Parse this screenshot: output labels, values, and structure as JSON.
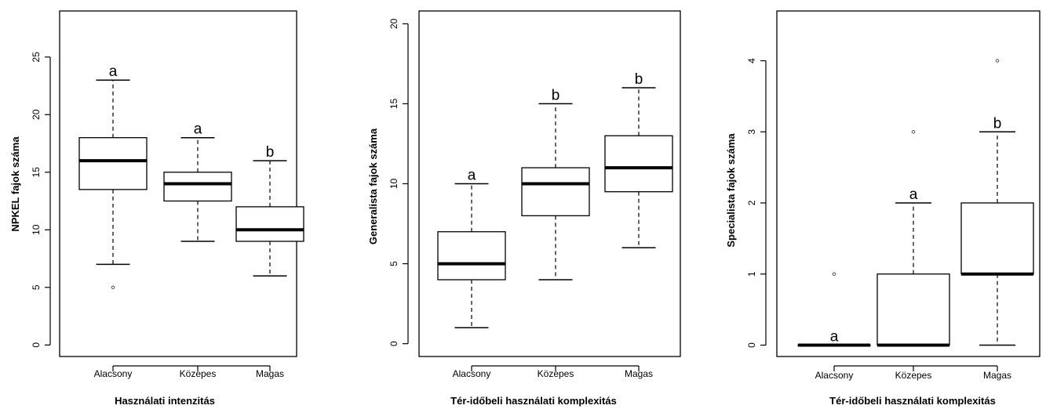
{
  "chart_data": [
    {
      "type": "boxplot",
      "xlabel": "Használati intenzitás",
      "ylabel": "NPKEL fajok száma",
      "ylim": [
        -1,
        29
      ],
      "yticks": [
        0,
        5,
        10,
        15,
        20,
        25
      ],
      "categories": [
        "Alacsony",
        "Közepes",
        "Magas"
      ],
      "boxes": [
        {
          "category": "Alacsony",
          "whisker_low": 7,
          "q1": 13.5,
          "median": 16,
          "q3": 18,
          "whisker_high": 23,
          "outliers": [
            5
          ],
          "letter": "a"
        },
        {
          "category": "Közepes",
          "whisker_low": 9,
          "q1": 12.5,
          "median": 14,
          "q3": 15,
          "whisker_high": 18,
          "outliers": [],
          "letter": "a"
        },
        {
          "category": "Magas",
          "whisker_low": 6,
          "q1": 9,
          "median": 10,
          "q3": 12,
          "whisker_high": 16,
          "outliers": [],
          "letter": "b"
        }
      ]
    },
    {
      "type": "boxplot",
      "xlabel": "Tér-időbeli használati komplexitás",
      "ylabel": "Generalista fajok száma",
      "ylim": [
        -0.8,
        20.8
      ],
      "yticks": [
        0,
        5,
        10,
        15,
        20
      ],
      "categories": [
        "Alacsony",
        "Közepes",
        "Magas"
      ],
      "boxes": [
        {
          "category": "Alacsony",
          "whisker_low": 1,
          "q1": 4,
          "median": 5,
          "q3": 7,
          "whisker_high": 10,
          "outliers": [],
          "letter": "a"
        },
        {
          "category": "Közepes",
          "whisker_low": 4,
          "q1": 8,
          "median": 10,
          "q3": 11,
          "whisker_high": 15,
          "outliers": [],
          "letter": "b"
        },
        {
          "category": "Magas",
          "whisker_low": 6,
          "q1": 9.5,
          "median": 11,
          "q3": 13,
          "whisker_high": 16,
          "outliers": [],
          "letter": "b"
        }
      ]
    },
    {
      "type": "boxplot",
      "xlabel": "Tér-időbeli használati komplexitás",
      "ylabel": "Specialista fajok száma",
      "ylim": [
        -0.16,
        4.7
      ],
      "yticks": [
        0,
        1,
        2,
        3,
        4
      ],
      "categories": [
        "Alacsony",
        "Közepes",
        "Magas"
      ],
      "boxes": [
        {
          "category": "Alacsony",
          "whisker_low": 0,
          "q1": 0,
          "median": 0,
          "q3": 0,
          "whisker_high": 0,
          "outliers": [
            1
          ],
          "letter": "a"
        },
        {
          "category": "Közepes",
          "whisker_low": 0,
          "q1": 0,
          "median": 0,
          "q3": 1,
          "whisker_high": 2,
          "outliers": [
            3
          ],
          "letter": "a"
        },
        {
          "category": "Magas",
          "whisker_low": 0,
          "q1": 1,
          "median": 1,
          "q3": 2,
          "whisker_high": 3,
          "outliers": [
            4
          ],
          "letter": "b"
        }
      ]
    }
  ]
}
